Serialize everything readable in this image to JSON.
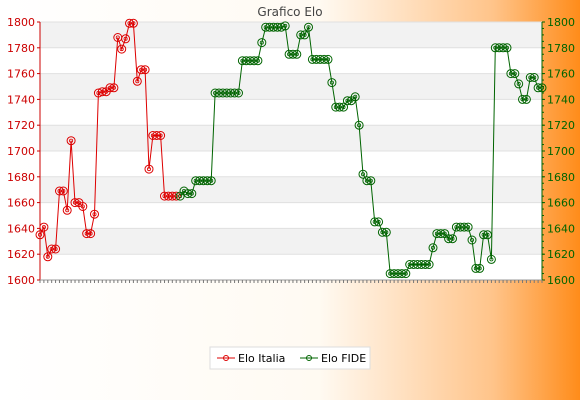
{
  "chart_data": {
    "type": "line",
    "title": "Grafico Elo",
    "xlabel": "",
    "ylabel": "",
    "ylim": [
      1600,
      1800
    ],
    "y_ticks": [
      1600,
      1620,
      1640,
      1660,
      1680,
      1700,
      1720,
      1740,
      1760,
      1780,
      1800
    ],
    "grid": true,
    "legend_position": "bottom",
    "series": [
      {
        "name": "Elo Italia",
        "color": "#dd0000",
        "axis": "left",
        "values": [
          1635,
          1641,
          1618,
          1624,
          1624,
          1669,
          1669,
          1654,
          1708,
          1660,
          1660,
          1657,
          1636,
          1636,
          1651,
          1745,
          1746,
          1746,
          1749,
          1749,
          1788,
          1779,
          1787,
          1799,
          1799,
          1754,
          1763,
          1763,
          1686,
          1712,
          1712,
          1712,
          1665,
          1665,
          1665,
          1665
        ]
      },
      {
        "name": "Elo FIDE",
        "color": "#006400",
        "axis": "right",
        "values": [
          1665,
          1669,
          1667,
          1667,
          1677,
          1677,
          1677,
          1677,
          1677,
          1745,
          1745,
          1745,
          1745,
          1745,
          1745,
          1745,
          1770,
          1770,
          1770,
          1770,
          1770,
          1784,
          1796,
          1796,
          1796,
          1796,
          1796,
          1797,
          1775,
          1775,
          1775,
          1790,
          1790,
          1796,
          1771,
          1771,
          1771,
          1771,
          1771,
          1753,
          1734,
          1734,
          1734,
          1739,
          1739,
          1742,
          1720,
          1682,
          1677,
          1677,
          1645,
          1645,
          1637,
          1637,
          1605,
          1605,
          1605,
          1605,
          1605,
          1612,
          1612,
          1612,
          1612,
          1612,
          1612,
          1625,
          1636,
          1636,
          1636,
          1632,
          1632,
          1641,
          1641,
          1641,
          1641,
          1631,
          1609,
          1609,
          1635,
          1635,
          1616,
          1780,
          1780,
          1780,
          1780,
          1760,
          1760,
          1752,
          1740,
          1740,
          1757,
          1757,
          1749,
          1749
        ]
      }
    ]
  }
}
